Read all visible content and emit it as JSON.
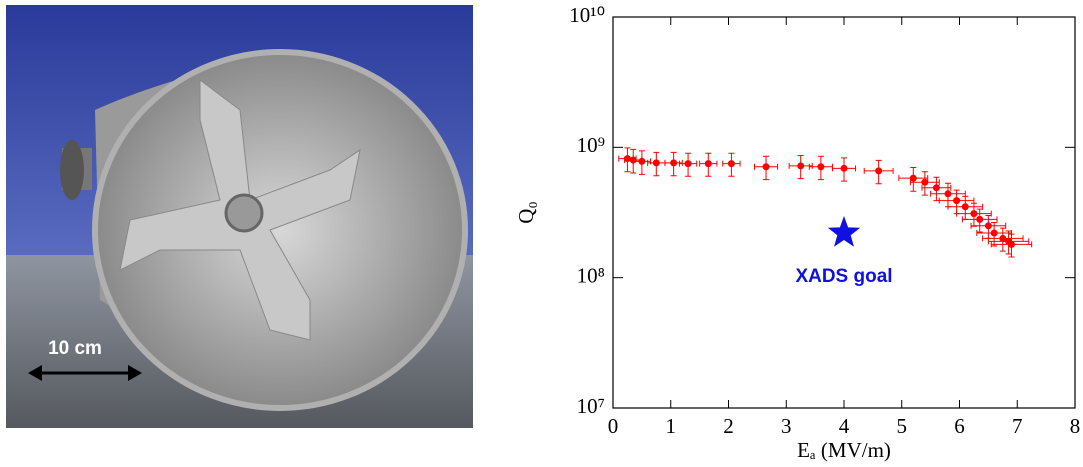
{
  "photo": {
    "scale_label": "10 cm"
  },
  "chart_data": {
    "type": "scatter",
    "log_y": true,
    "xlabel": "Eₐ (MV/m)",
    "ylabel": "Q₀",
    "xlim": [
      0,
      8
    ],
    "xticks": [
      0,
      1,
      2,
      3,
      4,
      5,
      6,
      7,
      8
    ],
    "ylim": [
      10000000,
      10000000000
    ],
    "yticks": [
      {
        "value": 10000000,
        "label": "10⁷"
      },
      {
        "value": 100000000,
        "label": "10⁸"
      },
      {
        "value": 1000000000,
        "label": "10⁹"
      },
      {
        "value": 10000000000,
        "label": "10¹⁰"
      }
    ],
    "series": [
      {
        "color": "#ff0000",
        "x": [
          0.25,
          0.35,
          0.5,
          0.75,
          1.05,
          1.3,
          1.65,
          2.05,
          2.65,
          3.25,
          3.6,
          4.0,
          4.6,
          5.2,
          5.4,
          5.6,
          5.8,
          5.95,
          6.1,
          6.25,
          6.35,
          6.5,
          6.6,
          6.75,
          6.85,
          6.9
        ],
        "values": [
          820000000,
          800000000,
          780000000,
          760000000,
          760000000,
          750000000,
          750000000,
          750000000,
          710000000,
          720000000,
          710000000,
          690000000,
          660000000,
          580000000,
          540000000,
          490000000,
          440000000,
          390000000,
          350000000,
          310000000,
          280000000,
          250000000,
          220000000,
          200000000,
          190000000,
          180000000
        ],
        "yerr": [
          170000000,
          165000000,
          160000000,
          155000000,
          155000000,
          150000000,
          150000000,
          150000000,
          145000000,
          145000000,
          145000000,
          140000000,
          135000000,
          120000000,
          110000000,
          100000000,
          90000000,
          80000000,
          70000000,
          62000000,
          56000000,
          50000000,
          45000000,
          40000000,
          38000000,
          36000000
        ],
        "xerr": [
          0.15,
          0.15,
          0.15,
          0.15,
          0.15,
          0.15,
          0.15,
          0.15,
          0.2,
          0.2,
          0.2,
          0.2,
          0.25,
          0.25,
          0.25,
          0.25,
          0.3,
          0.3,
          0.3,
          0.3,
          0.3,
          0.3,
          0.3,
          0.35,
          0.35,
          0.35
        ]
      }
    ],
    "annotation": {
      "x": 4.0,
      "y": 220000000,
      "label": "XADS goal",
      "color": "#1010e0"
    }
  }
}
